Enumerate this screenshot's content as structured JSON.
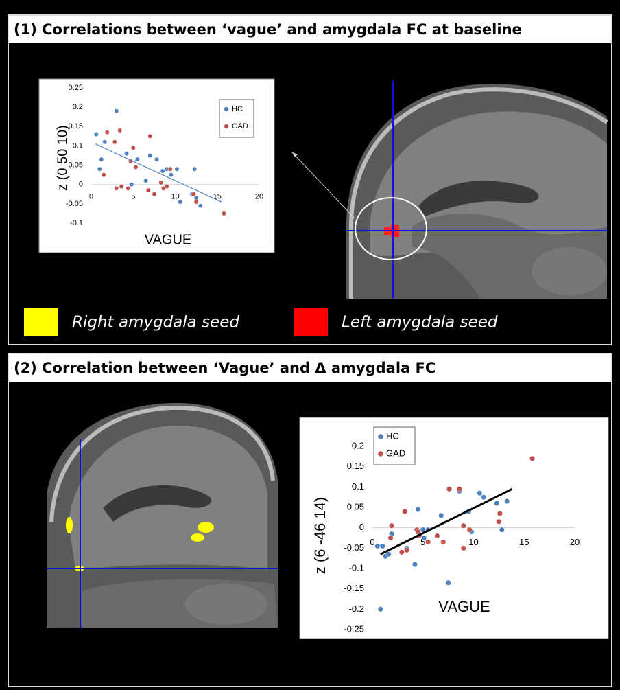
{
  "panels": [
    {
      "title": "(1) Correlations between ‘vague’ and amygdala FC at baseline"
    },
    {
      "title": "(2) Correlation between ‘Vague’ and Δ amygdala FC"
    }
  ],
  "seeds": [
    {
      "label": "Right amygdala seed",
      "color": "#ffff00"
    },
    {
      "label": "Left amygdala seed",
      "color": "#ff0000"
    }
  ],
  "chart_data": [
    {
      "type": "scatter",
      "xlabel": "VAGUE",
      "ylabel": "z (0 50 10)",
      "xlim": [
        0,
        20
      ],
      "xticks": [
        0,
        5,
        10,
        15,
        20
      ],
      "ylim": [
        -0.1,
        0.25
      ],
      "yticks": [
        -0.1,
        -0.05,
        0,
        0.05,
        0.1,
        0.15,
        0.2,
        0.25
      ],
      "series": [
        {
          "name": "HC",
          "color": "#4f81bd",
          "x": [
            0.6,
            1.2,
            1.0,
            1.6,
            3,
            4.2,
            4.8,
            5.5,
            6.5,
            7,
            7.8,
            8.5,
            9,
            9.5,
            10.2,
            10.6,
            12,
            12.3,
            13,
            12.5
          ],
          "values": [
            0.13,
            0.065,
            0.04,
            0.11,
            0.19,
            0.08,
            0,
            0.065,
            0.01,
            0.075,
            0.065,
            0.035,
            0.04,
            0.025,
            0.04,
            -0.045,
            -0.025,
            0.04,
            -0.055,
            -0.035
          ]
        },
        {
          "name": "GAD",
          "color": "#c0504d",
          "x": [
            1.5,
            1.9,
            2.8,
            3,
            3.4,
            3.6,
            4.4,
            4.7,
            5.0,
            5.3,
            6.8,
            7.0,
            7.5,
            8.3,
            8.6,
            9,
            9.4,
            12.2,
            12.5,
            15.8
          ],
          "values": [
            0.025,
            0.135,
            0.11,
            -0.01,
            0.14,
            -0.005,
            -0.01,
            0.06,
            0.095,
            0.045,
            -0.015,
            0.125,
            -0.025,
            0.005,
            -0.01,
            -0.005,
            0.04,
            -0.025,
            -0.045,
            -0.075
          ]
        }
      ],
      "trendline": {
        "color": "#4f81bd",
        "x": [
          0.5,
          15.5
        ],
        "values": [
          0.105,
          -0.045
        ]
      }
    },
    {
      "type": "scatter",
      "xlabel": "VAGUE",
      "ylabel": "z (6 -46 14)",
      "xlim": [
        0,
        20
      ],
      "xticks": [
        0,
        5,
        10,
        15,
        20
      ],
      "ylim": [
        -0.25,
        0.2
      ],
      "yticks": [
        -0.25,
        -0.2,
        -0.15,
        -0.1,
        -0.05,
        0,
        0.05,
        0.1,
        0.15,
        0.2
      ],
      "series": [
        {
          "name": "HC",
          "color": "#4f81bd",
          "x": [
            0.5,
            1,
            0.8,
            1.3,
            1.6,
            1.9,
            4.2,
            4.5,
            5.1,
            5.5,
            6.8,
            7.5,
            8.6,
            9.5,
            9.8,
            10.6,
            11,
            12.3,
            12.8,
            13.3,
            3.4,
            5.0
          ],
          "values": [
            -0.045,
            -0.045,
            -0.2,
            -0.07,
            -0.065,
            -0.015,
            -0.09,
            0.045,
            -0.025,
            -0.005,
            0.03,
            -0.135,
            0.09,
            0.04,
            -0.01,
            0.085,
            0.075,
            0.06,
            -0.005,
            0.065,
            -0.05,
            -0.005
          ]
        },
        {
          "name": "GAD",
          "color": "#c0504d",
          "x": [
            1.9,
            1.8,
            2.9,
            3.2,
            3.4,
            4.4,
            4.6,
            5.5,
            6.4,
            7,
            7.6,
            8.6,
            9,
            9,
            9.6,
            12.5,
            12.6,
            15.8,
            4.5
          ],
          "values": [
            0.005,
            -0.025,
            -0.06,
            0.04,
            -0.055,
            -0.005,
            -0.02,
            -0.035,
            -0.02,
            -0.035,
            0.095,
            0.095,
            -0.05,
            0.005,
            -0.005,
            0.015,
            0.035,
            0.17,
            -0.01
          ]
        }
      ],
      "trendline": {
        "color": "#000000",
        "x": [
          0.8,
          13.8
        ],
        "values": [
          -0.065,
          0.095
        ]
      }
    }
  ]
}
